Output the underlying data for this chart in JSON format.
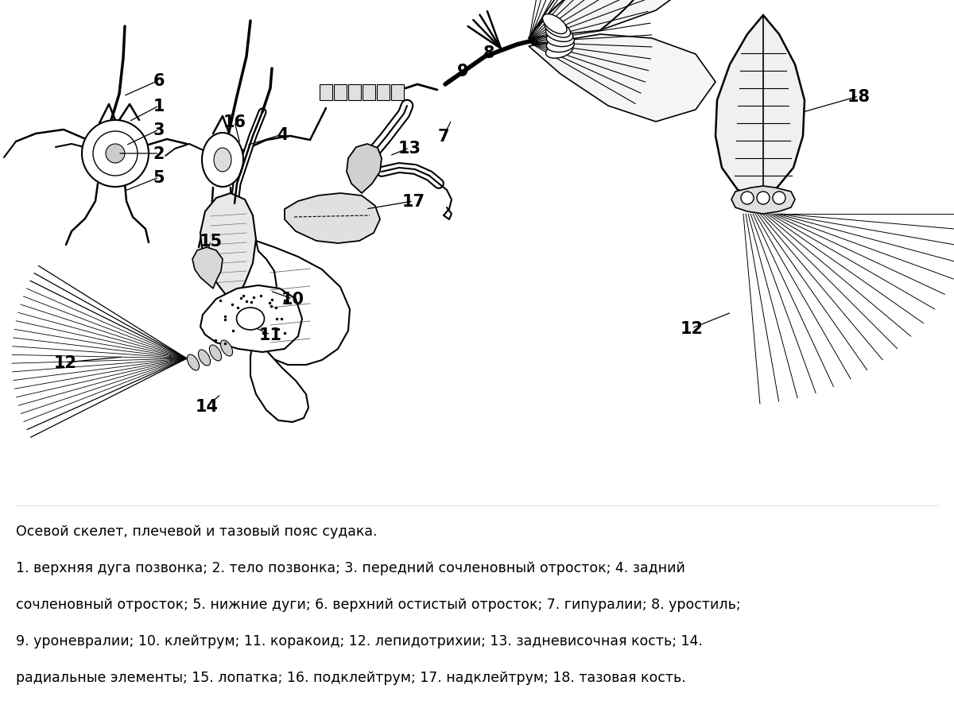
{
  "background_color": "#ffffff",
  "caption_line1": "Осевой скелет, плечевой и тазовый пояс судака.",
  "caption_line2": "1. верхняя дуга позвонка; 2. тело позвонка; 3. передний сочленовный отросток; 4. задний",
  "caption_line3": "сочленовный отросток; 5. нижние дуги; 6. верхний остистый отросток; 7. гипуралии; 8. уростиль;",
  "caption_line4": "9. уроневралии; 10. клейтрум; 11. коракоид; 12. лепидотрихии; 13. задневисочная кость; 14.",
  "caption_line5": "радиальные элементы; 15. лопатка; 16. подклейтрум; 17. надклейтрум; 18. тазовая кость.",
  "font_size_labels": 15,
  "font_size_caption": 12.5,
  "figsize": [
    12.0,
    9.12
  ],
  "dpi": 100
}
